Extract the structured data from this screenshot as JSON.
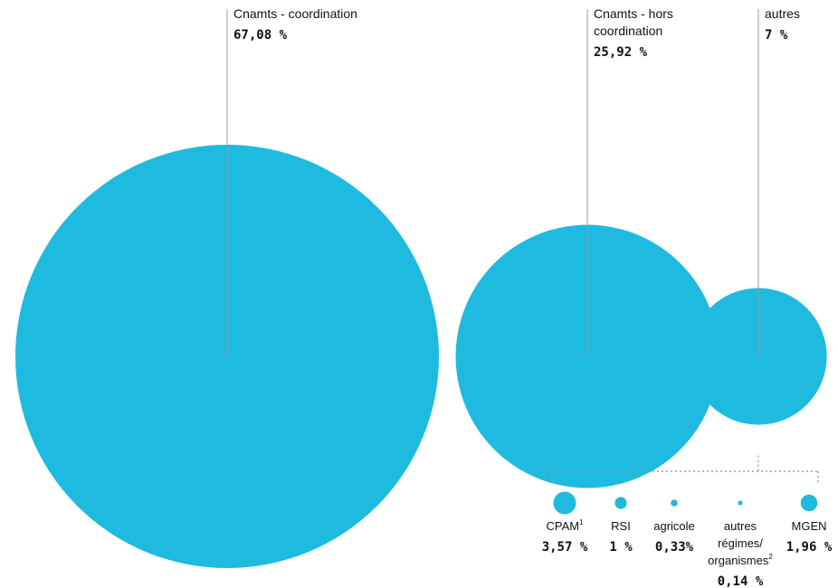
{
  "colors": {
    "bubble": "#1FBADF",
    "leader": "#9a9a9a",
    "dotted": "#8a8a8a"
  },
  "chart_data": {
    "type": "bubble",
    "unit": "%",
    "main": [
      {
        "label_lines": [
          "Cnamts - coordination"
        ],
        "value": 67.08,
        "value_text": "67,08 %"
      },
      {
        "label_lines": [
          "Cnamts - hors",
          "coordination"
        ],
        "value": 25.92,
        "value_text": "25,92 %"
      },
      {
        "label_lines": [
          "autres"
        ],
        "value": 7,
        "value_text": "7 %"
      }
    ],
    "breakdown_of": "autres",
    "breakdown": [
      {
        "label_lines": [
          "CPAM"
        ],
        "sup": "1",
        "value": 3.57,
        "value_text": "3,57 %"
      },
      {
        "label_lines": [
          "RSI"
        ],
        "sup": "",
        "value": 1,
        "value_text": "1 %"
      },
      {
        "label_lines": [
          "agricole"
        ],
        "sup": "",
        "value": 0.33,
        "value_text": "0,33%"
      },
      {
        "label_lines": [
          "autres",
          "régimes/",
          "organismes"
        ],
        "sup": "2",
        "value": 0.14,
        "value_text": "0,14 %"
      },
      {
        "label_lines": [
          "MGEN"
        ],
        "sup": "",
        "value": 1.96,
        "value_text": "1,96 %"
      }
    ]
  }
}
